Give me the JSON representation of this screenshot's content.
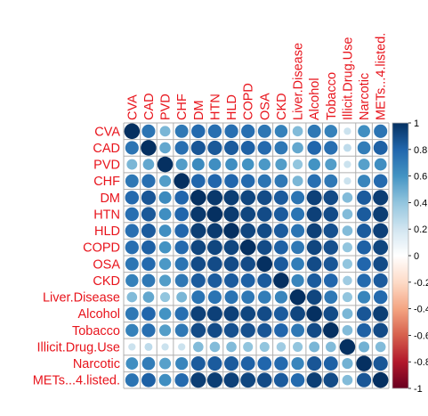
{
  "chart_data": {
    "type": "heatmap",
    "style": "corrplot-circle",
    "variables": [
      "CVA",
      "CAD",
      "PVD",
      "CHF",
      "DM",
      "HTN",
      "HLD",
      "COPD",
      "OSA",
      "CKD",
      "Liver.Disease",
      "Alcohol",
      "Tobacco",
      "Illicit.Drug.Use",
      "Narcotic",
      "METs...4.listed."
    ],
    "matrix": [
      [
        1.0,
        0.74,
        0.46,
        0.72,
        0.78,
        0.76,
        0.76,
        0.76,
        0.73,
        0.68,
        0.44,
        0.72,
        0.68,
        0.22,
        0.62,
        0.74
      ],
      [
        0.74,
        1.0,
        0.52,
        0.76,
        0.86,
        0.85,
        0.84,
        0.82,
        0.78,
        0.72,
        0.52,
        0.8,
        0.76,
        0.26,
        0.7,
        0.82
      ],
      [
        0.46,
        0.52,
        1.0,
        0.56,
        0.64,
        0.62,
        0.62,
        0.6,
        0.58,
        0.56,
        0.4,
        0.6,
        0.56,
        0.22,
        0.55,
        0.62
      ],
      [
        0.72,
        0.76,
        0.56,
        1.0,
        0.8,
        0.8,
        0.8,
        0.78,
        0.74,
        0.72,
        0.46,
        0.76,
        0.72,
        0.22,
        0.66,
        0.78
      ],
      [
        0.78,
        0.86,
        0.64,
        0.8,
        1.0,
        0.97,
        0.95,
        0.92,
        0.9,
        0.84,
        0.74,
        0.94,
        0.9,
        0.44,
        0.84,
        0.95
      ],
      [
        0.76,
        0.85,
        0.62,
        0.8,
        0.97,
        1.0,
        0.96,
        0.92,
        0.9,
        0.84,
        0.74,
        0.94,
        0.9,
        0.44,
        0.84,
        0.95
      ],
      [
        0.76,
        0.84,
        0.62,
        0.8,
        0.95,
        0.96,
        1.0,
        0.92,
        0.9,
        0.84,
        0.74,
        0.94,
        0.88,
        0.44,
        0.84,
        0.94
      ],
      [
        0.76,
        0.82,
        0.6,
        0.78,
        0.92,
        0.92,
        0.92,
        1.0,
        0.9,
        0.82,
        0.72,
        0.92,
        0.88,
        0.4,
        0.82,
        0.92
      ],
      [
        0.73,
        0.78,
        0.58,
        0.74,
        0.9,
        0.9,
        0.9,
        0.9,
        1.0,
        0.84,
        0.7,
        0.9,
        0.86,
        0.4,
        0.8,
        0.9
      ],
      [
        0.68,
        0.72,
        0.56,
        0.72,
        0.84,
        0.84,
        0.84,
        0.82,
        0.84,
        1.0,
        0.66,
        0.84,
        0.8,
        0.36,
        0.78,
        0.84
      ],
      [
        0.44,
        0.52,
        0.4,
        0.46,
        0.74,
        0.74,
        0.74,
        0.72,
        0.7,
        0.66,
        1.0,
        0.92,
        0.72,
        0.4,
        0.66,
        0.78
      ],
      [
        0.72,
        0.8,
        0.6,
        0.76,
        0.94,
        0.94,
        0.94,
        0.92,
        0.9,
        0.84,
        0.92,
        1.0,
        0.9,
        0.46,
        0.86,
        0.95
      ],
      [
        0.68,
        0.76,
        0.56,
        0.72,
        0.9,
        0.9,
        0.88,
        0.88,
        0.86,
        0.8,
        0.72,
        0.9,
        1.0,
        0.44,
        0.82,
        0.9
      ],
      [
        0.22,
        0.26,
        0.22,
        0.22,
        0.44,
        0.44,
        0.44,
        0.4,
        0.4,
        0.36,
        0.4,
        0.46,
        0.44,
        1.0,
        0.48,
        0.44
      ],
      [
        0.62,
        0.7,
        0.55,
        0.66,
        0.84,
        0.84,
        0.84,
        0.82,
        0.8,
        0.78,
        0.66,
        0.86,
        0.82,
        0.48,
        1.0,
        0.86
      ],
      [
        0.74,
        0.82,
        0.62,
        0.78,
        0.95,
        0.95,
        0.94,
        0.92,
        0.9,
        0.84,
        0.78,
        0.95,
        0.9,
        0.44,
        0.86,
        1.0
      ]
    ],
    "colorbar": {
      "range": [
        -1,
        1
      ],
      "ticks": [
        "1",
        "0.8",
        "0.6",
        "0.4",
        "0.2",
        "0",
        "-0.2",
        "-0.4",
        "-0.6",
        "-0.8",
        "-1"
      ]
    },
    "colors": {
      "label": "#e8141c",
      "grid": "#b0b0b0",
      "scale": [
        "#67001f",
        "#b2182b",
        "#d6604d",
        "#f4a582",
        "#fddbc7",
        "#ffffff",
        "#d1e5f0",
        "#92c5de",
        "#4393c3",
        "#2166ac",
        "#053061"
      ]
    }
  }
}
